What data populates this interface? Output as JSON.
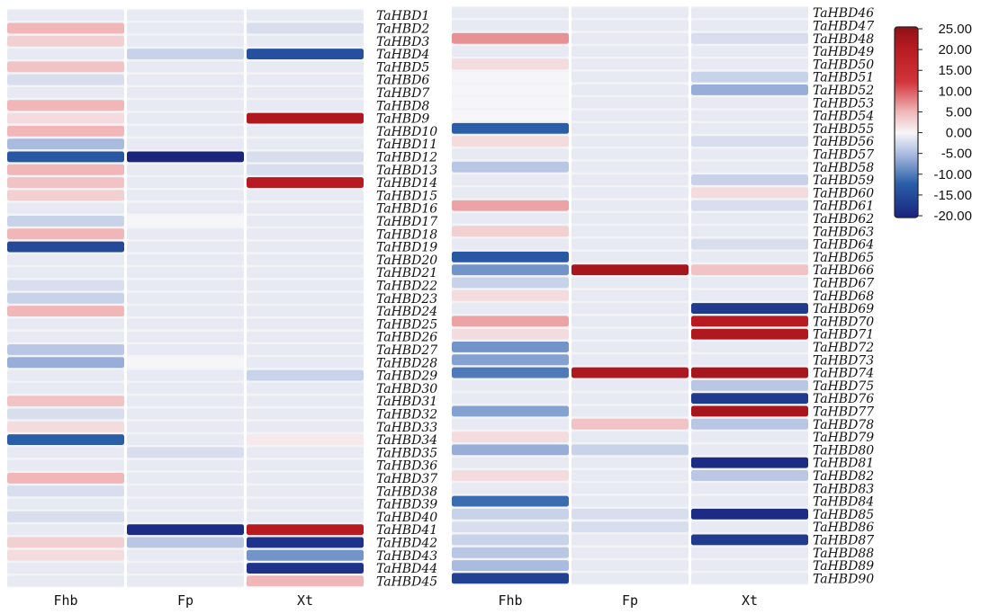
{
  "chart_data": {
    "type": "heatmap",
    "columns": [
      "Fhb",
      "Fp",
      "Xt"
    ],
    "colorbar": {
      "min": -20,
      "max": 25,
      "ticks": [
        "25.00",
        "20.00",
        "15.00",
        "10.00",
        "5.00",
        "0.00",
        "-5.00",
        "-10.00",
        "-15.00",
        "-20.00"
      ],
      "stops": [
        {
          "v": -20,
          "color": "#1a237e"
        },
        {
          "v": -12,
          "color": "#2a5fa8"
        },
        {
          "v": -5,
          "color": "#aabbe0"
        },
        {
          "v": 0,
          "color": "#f6f6f8"
        },
        {
          "v": 5,
          "color": "#f0b6b8"
        },
        {
          "v": 12,
          "color": "#d2343c"
        },
        {
          "v": 20,
          "color": "#b81a22"
        },
        {
          "v": 25,
          "color": "#8e1116"
        }
      ]
    },
    "panels": [
      {
        "rows": [
          {
            "gene": "TaHBD1",
            "values": [
              -1,
              -1,
              -1
            ]
          },
          {
            "gene": "TaHBD2",
            "values": [
              5,
              -1,
              -2
            ]
          },
          {
            "gene": "TaHBD3",
            "values": [
              3,
              -1,
              -1
            ]
          },
          {
            "gene": "TaHBD4",
            "values": [
              -1,
              -3,
              -14
            ]
          },
          {
            "gene": "TaHBD5",
            "values": [
              4,
              -1,
              -1
            ]
          },
          {
            "gene": "TaHBD6",
            "values": [
              -2,
              -1,
              -1
            ]
          },
          {
            "gene": "TaHBD7",
            "values": [
              -1,
              -1,
              -1
            ]
          },
          {
            "gene": "TaHBD8",
            "values": [
              5,
              -1,
              -1
            ]
          },
          {
            "gene": "TaHBD9",
            "values": [
              2,
              -1,
              21
            ]
          },
          {
            "gene": "TaHBD10",
            "values": [
              5,
              -1,
              -1
            ]
          },
          {
            "gene": "TaHBD11",
            "values": [
              -5,
              -1,
              -1
            ]
          },
          {
            "gene": "TaHBD12",
            "values": [
              -13,
              -20,
              -2
            ]
          },
          {
            "gene": "TaHBD13",
            "values": [
              5,
              -1,
              -2
            ]
          },
          {
            "gene": "TaHBD14",
            "values": [
              4,
              -1,
              20
            ]
          },
          {
            "gene": "TaHBD15",
            "values": [
              3,
              -1,
              -1
            ]
          },
          {
            "gene": "TaHBD16",
            "values": [
              -1,
              -1,
              -1
            ]
          },
          {
            "gene": "TaHBD17",
            "values": [
              -3,
              0,
              -1
            ]
          },
          {
            "gene": "TaHBD18",
            "values": [
              5,
              -1,
              -1
            ]
          },
          {
            "gene": "TaHBD19",
            "values": [
              -15,
              -1,
              -1
            ]
          },
          {
            "gene": "TaHBD20",
            "values": [
              -1,
              -1,
              -1
            ]
          },
          {
            "gene": "TaHBD21",
            "values": [
              -1,
              -1,
              -1
            ]
          },
          {
            "gene": "TaHBD22",
            "values": [
              -2,
              -1,
              -1
            ]
          },
          {
            "gene": "TaHBD23",
            "values": [
              -3,
              -1,
              -1
            ]
          },
          {
            "gene": "TaHBD24",
            "values": [
              5,
              -1,
              -1
            ]
          },
          {
            "gene": "TaHBD25",
            "values": [
              -1,
              -1,
              -1
            ]
          },
          {
            "gene": "TaHBD26",
            "values": [
              -1,
              -1,
              -1
            ]
          },
          {
            "gene": "TaHBD27",
            "values": [
              -4,
              -1,
              -1
            ]
          },
          {
            "gene": "TaHBD28",
            "values": [
              -6,
              0,
              -1
            ]
          },
          {
            "gene": "TaHBD29",
            "values": [
              -1,
              -1,
              -3
            ]
          },
          {
            "gene": "TaHBD30",
            "values": [
              -1,
              -1,
              -1
            ]
          },
          {
            "gene": "TaHBD31",
            "values": [
              4,
              -1,
              -1
            ]
          },
          {
            "gene": "TaHBD32",
            "values": [
              -2,
              -1,
              -1
            ]
          },
          {
            "gene": "TaHBD33",
            "values": [
              2,
              -1,
              -1
            ]
          },
          {
            "gene": "TaHBD34",
            "values": [
              -12,
              -1,
              1
            ]
          },
          {
            "gene": "TaHBD35",
            "values": [
              -1,
              -2,
              -1
            ]
          },
          {
            "gene": "TaHBD36",
            "values": [
              -1,
              -1,
              -1
            ]
          },
          {
            "gene": "TaHBD37",
            "values": [
              5,
              -1,
              -1
            ]
          },
          {
            "gene": "TaHBD38",
            "values": [
              -2,
              -1,
              -1
            ]
          },
          {
            "gene": "TaHBD39",
            "values": [
              -1,
              -1,
              -1
            ]
          },
          {
            "gene": "TaHBD40",
            "values": [
              -2,
              -1,
              -1
            ]
          },
          {
            "gene": "TaHBD41",
            "values": [
              -1,
              -19,
              20
            ]
          },
          {
            "gene": "TaHBD42",
            "values": [
              3,
              -4,
              -18
            ]
          },
          {
            "gene": "TaHBD43",
            "values": [
              2,
              -1,
              -8
            ]
          },
          {
            "gene": "TaHBD44",
            "values": [
              -1,
              -1,
              -18
            ]
          },
          {
            "gene": "TaHBD45",
            "values": [
              -1,
              -1,
              5
            ]
          }
        ]
      },
      {
        "rows": [
          {
            "gene": "TaHBD46",
            "values": [
              -1,
              -1,
              -1
            ]
          },
          {
            "gene": "TaHBD47",
            "values": [
              -1,
              -1,
              -1
            ]
          },
          {
            "gene": "TaHBD48",
            "values": [
              7,
              -1,
              -2
            ]
          },
          {
            "gene": "TaHBD49",
            "values": [
              -1,
              -1,
              -1
            ]
          },
          {
            "gene": "TaHBD50",
            "values": [
              2,
              -1,
              -1
            ]
          },
          {
            "gene": "TaHBD51",
            "values": [
              0,
              -1,
              -3
            ]
          },
          {
            "gene": "TaHBD52",
            "values": [
              0,
              -1,
              -6
            ]
          },
          {
            "gene": "TaHBD53",
            "values": [
              0,
              -1,
              -1
            ]
          },
          {
            "gene": "TaHBD54",
            "values": [
              0,
              -1,
              -1
            ]
          },
          {
            "gene": "TaHBD55",
            "values": [
              -12,
              -1,
              -1
            ]
          },
          {
            "gene": "TaHBD56",
            "values": [
              2,
              -1,
              -2
            ]
          },
          {
            "gene": "TaHBD57",
            "values": [
              -1,
              -1,
              -1
            ]
          },
          {
            "gene": "TaHBD58",
            "values": [
              -4,
              -1,
              -1
            ]
          },
          {
            "gene": "TaHBD59",
            "values": [
              -1,
              -1,
              -3
            ]
          },
          {
            "gene": "TaHBD60",
            "values": [
              -1,
              -1,
              2
            ]
          },
          {
            "gene": "TaHBD61",
            "values": [
              6,
              -1,
              -2
            ]
          },
          {
            "gene": "TaHBD62",
            "values": [
              -1,
              -1,
              -1
            ]
          },
          {
            "gene": "TaHBD63",
            "values": [
              3,
              -1,
              -1
            ]
          },
          {
            "gene": "TaHBD64",
            "values": [
              -1,
              -1,
              -2
            ]
          },
          {
            "gene": "TaHBD65",
            "values": [
              -13,
              -1,
              -1
            ]
          },
          {
            "gene": "TaHBD66",
            "values": [
              -8,
              22,
              4
            ]
          },
          {
            "gene": "TaHBD67",
            "values": [
              -3,
              -1,
              -1
            ]
          },
          {
            "gene": "TaHBD68",
            "values": [
              2,
              -1,
              -1
            ]
          },
          {
            "gene": "TaHBD69",
            "values": [
              -1,
              -1,
              -17
            ]
          },
          {
            "gene": "TaHBD70",
            "values": [
              6,
              -1,
              20
            ]
          },
          {
            "gene": "TaHBD71",
            "values": [
              2,
              -1,
              21
            ]
          },
          {
            "gene": "TaHBD72",
            "values": [
              -8,
              -1,
              -1
            ]
          },
          {
            "gene": "TaHBD73",
            "values": [
              -7,
              -1,
              -1
            ]
          },
          {
            "gene": "TaHBD74",
            "values": [
              -10,
              21,
              22
            ]
          },
          {
            "gene": "TaHBD75",
            "values": [
              -1,
              -1,
              -4
            ]
          },
          {
            "gene": "TaHBD76",
            "values": [
              -1,
              -1,
              -17
            ]
          },
          {
            "gene": "TaHBD77",
            "values": [
              -7,
              -1,
              22
            ]
          },
          {
            "gene": "TaHBD78",
            "values": [
              -1,
              4,
              -4
            ]
          },
          {
            "gene": "TaHBD79",
            "values": [
              2,
              -1,
              -1
            ]
          },
          {
            "gene": "TaHBD80",
            "values": [
              -6,
              -3,
              -1
            ]
          },
          {
            "gene": "TaHBD81",
            "values": [
              -1,
              -1,
              -19
            ]
          },
          {
            "gene": "TaHBD82",
            "values": [
              2,
              -1,
              -4
            ]
          },
          {
            "gene": "TaHBD83",
            "values": [
              -1,
              -1,
              -1
            ]
          },
          {
            "gene": "TaHBD84",
            "values": [
              -11,
              -1,
              -1
            ]
          },
          {
            "gene": "TaHBD85",
            "values": [
              -3,
              -2,
              -19
            ]
          },
          {
            "gene": "TaHBD86",
            "values": [
              -2,
              -2,
              -1
            ]
          },
          {
            "gene": "TaHBD87",
            "values": [
              -3,
              -1,
              -17
            ]
          },
          {
            "gene": "TaHBD88",
            "values": [
              -4,
              -1,
              -1
            ]
          },
          {
            "gene": "TaHBD89",
            "values": [
              -5,
              -1,
              -1
            ]
          },
          {
            "gene": "TaHBD90",
            "values": [
              -16,
              -1,
              -1
            ]
          }
        ]
      }
    ]
  }
}
